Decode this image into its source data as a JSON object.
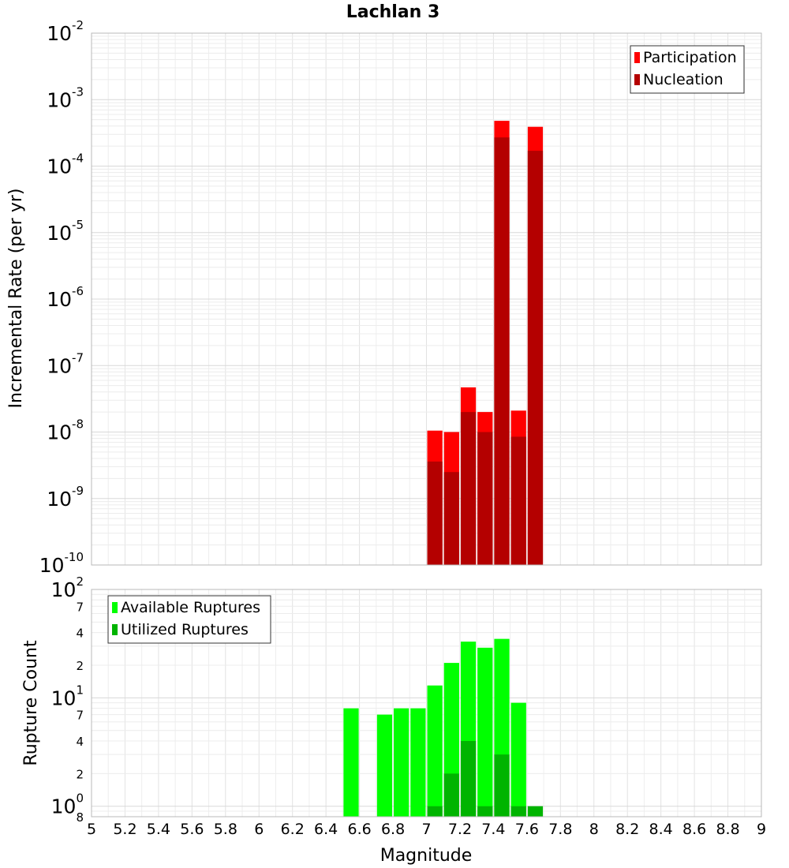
{
  "chart_data": [
    {
      "type": "bar",
      "title": "Lachlan 3",
      "ylabel": "Incremental Rate (per yr)",
      "xlabel": "",
      "yscale": "log",
      "ylim": [
        1e-10,
        0.01
      ],
      "xlim": [
        5,
        9
      ],
      "grid": true,
      "legend": "top-right",
      "y_tick_labels": [
        {
          "mantissa": "10",
          "exponent": "-10",
          "value": 1e-10
        },
        {
          "mantissa": "10",
          "exponent": "-9",
          "value": 1e-09
        },
        {
          "mantissa": "10",
          "exponent": "-8",
          "value": 1e-08
        },
        {
          "mantissa": "10",
          "exponent": "-7",
          "value": 1e-07
        },
        {
          "mantissa": "10",
          "exponent": "-6",
          "value": 1e-06
        },
        {
          "mantissa": "10",
          "exponent": "-5",
          "value": 1e-05
        },
        {
          "mantissa": "10",
          "exponent": "-4",
          "value": 0.0001
        },
        {
          "mantissa": "10",
          "exponent": "-3",
          "value": 0.001
        },
        {
          "mantissa": "10",
          "exponent": "-2",
          "value": 0.01
        }
      ],
      "series": [
        {
          "name": "Participation",
          "color": "#ff0000",
          "x": [
            7.05,
            7.15,
            7.25,
            7.35,
            7.45,
            7.55,
            7.65
          ],
          "values": [
            1.05e-08,
            1e-08,
            4.7e-08,
            2e-08,
            0.00048,
            2.1e-08,
            0.00039
          ]
        },
        {
          "name": "Nucleation",
          "color": "#b40000",
          "x": [
            7.05,
            7.15,
            7.25,
            7.35,
            7.45,
            7.55,
            7.65
          ],
          "values": [
            3.6e-09,
            2.5e-09,
            2e-08,
            1e-08,
            0.00027,
            8.5e-09,
            0.00017
          ]
        }
      ]
    },
    {
      "type": "bar",
      "title": "",
      "ylabel": "Rupture Count",
      "xlabel": "Magnitude",
      "yscale": "log",
      "ylim": [
        0.8,
        100
      ],
      "xlim": [
        5,
        9
      ],
      "grid": true,
      "legend": "top-left",
      "x_tick_labels": [
        "5",
        "5.2",
        "5.4",
        "5.6",
        "5.8",
        "6",
        "6.2",
        "6.4",
        "6.6",
        "6.8",
        "7",
        "7.2",
        "7.4",
        "7.6",
        "7.8",
        "8",
        "8.2",
        "8.4",
        "8.6",
        "8.8",
        "9"
      ],
      "y_major_ticks": [
        {
          "mantissa": "10",
          "exponent": "0",
          "value": 1
        },
        {
          "mantissa": "10",
          "exponent": "1",
          "value": 10
        },
        {
          "mantissa": "10",
          "exponent": "2",
          "value": 100
        }
      ],
      "y_minor_ticks": [
        {
          "label": "8",
          "value": 0.8
        },
        {
          "label": "2",
          "value": 2
        },
        {
          "label": "4",
          "value": 4
        },
        {
          "label": "7",
          "value": 7
        },
        {
          "label": "2",
          "value": 20
        },
        {
          "label": "4",
          "value": 40
        },
        {
          "label": "7",
          "value": 70
        }
      ],
      "series": [
        {
          "name": "Available Ruptures",
          "color": "#00ff00",
          "x": [
            6.55,
            6.75,
            6.85,
            6.95,
            7.05,
            7.15,
            7.25,
            7.35,
            7.45,
            7.55
          ],
          "values": [
            8,
            7,
            8,
            8,
            13,
            21,
            33,
            29,
            35,
            9
          ]
        },
        {
          "name": "Utilized Ruptures",
          "color": "#00b400",
          "x": [
            7.05,
            7.15,
            7.25,
            7.35,
            7.45,
            7.55,
            7.65
          ],
          "values": [
            1,
            2,
            4,
            1,
            3,
            1,
            1
          ]
        }
      ]
    }
  ]
}
